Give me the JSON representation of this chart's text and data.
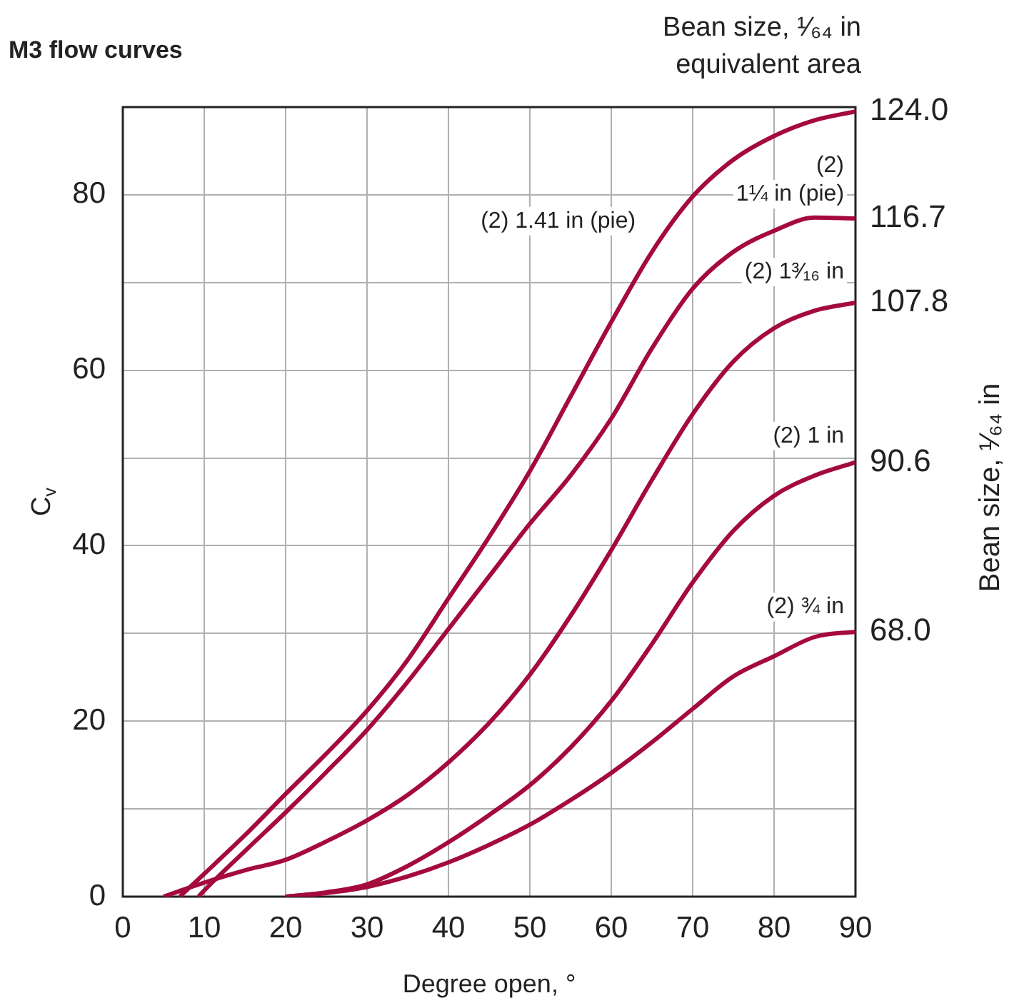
{
  "chart_data": {
    "type": "line",
    "title": "M3 flow curves",
    "xlabel": "Degree open, °",
    "ylabel": "C$_{v}$",
    "y2label": "Bean size, ¹⁄₆₄ in",
    "annotations": [
      "Bean size, ¹⁄₆₄ in equivalent area",
      "124.0",
      "116.7",
      "107.8",
      "90.6",
      "68.0"
    ],
    "xlim": [
      0,
      90
    ],
    "xticks": [
      0,
      10,
      20,
      30,
      40,
      50,
      60,
      70,
      80,
      90
    ],
    "ylim": [
      0,
      90
    ],
    "yticks": [
      0,
      {
        "value": 10,
        "label": null
      },
      20,
      {
        "value": 30,
        "label": null
      },
      40,
      {
        "value": 50,
        "label": null
      },
      60,
      {
        "value": 70,
        "label": null
      },
      80
    ],
    "grid": true,
    "marker": "none",
    "line_style": "solid",
    "series": [
      {
        "name": "(2) 1.41 in (pie)",
        "color": "#a50a3c",
        "x": [
          7,
          10,
          15,
          20,
          25,
          30,
          35,
          40,
          45,
          50,
          55,
          60,
          65,
          70,
          75,
          80,
          85,
          90
        ],
        "values": [
          0,
          2.6,
          7,
          11.7,
          16.3,
          21.2,
          27,
          34,
          41,
          48.5,
          57,
          65.5,
          73.5,
          79.8,
          84,
          86.7,
          88.5,
          89.5
        ]
      },
      {
        "name": "(2) 1¼ in (pie)",
        "color": "#a50a3c",
        "x": [
          9.3,
          10,
          15,
          20,
          25,
          30,
          35,
          40,
          45,
          50,
          55,
          60,
          65,
          70,
          75,
          80,
          85,
          90
        ],
        "values": [
          0,
          0.7,
          5.2,
          9.6,
          14.2,
          19,
          24.5,
          30.5,
          36.5,
          42.5,
          48,
          54.5,
          62.5,
          69.3,
          73.5,
          75.9,
          77.4,
          77.3
        ]
      },
      {
        "name": "(2) 1³⁄₁₆ in",
        "color": "#a50a3c",
        "x": [
          5,
          10,
          15,
          20,
          25,
          30,
          35,
          40,
          45,
          50,
          55,
          60,
          65,
          70,
          75,
          80,
          85,
          90
        ],
        "values": [
          0,
          1.6,
          3,
          4.2,
          6.3,
          8.7,
          11.6,
          15.3,
          19.8,
          25.3,
          32,
          39.5,
          47.5,
          55,
          61,
          64.8,
          66.8,
          67.7
        ]
      },
      {
        "name": "(2) 1 in",
        "color": "#a50a3c",
        "x": [
          20,
          25,
          30,
          35,
          40,
          45,
          50,
          55,
          60,
          65,
          70,
          75,
          80,
          85,
          90
        ],
        "values": [
          0,
          0.5,
          1.4,
          3.5,
          6.2,
          9.3,
          12.7,
          17,
          22.3,
          28.8,
          35.8,
          41.7,
          45.7,
          48,
          49.5
        ]
      },
      {
        "name": "(2) ¾ in",
        "color": "#a50a3c",
        "x": [
          20,
          25,
          30,
          35,
          40,
          45,
          50,
          55,
          60,
          65,
          70,
          75,
          80,
          85,
          90
        ],
        "values": [
          0,
          0.4,
          1.1,
          2.3,
          3.9,
          5.9,
          8.2,
          11,
          14.1,
          17.6,
          21.4,
          25.1,
          27.4,
          29.6,
          30.2
        ]
      }
    ]
  }
}
